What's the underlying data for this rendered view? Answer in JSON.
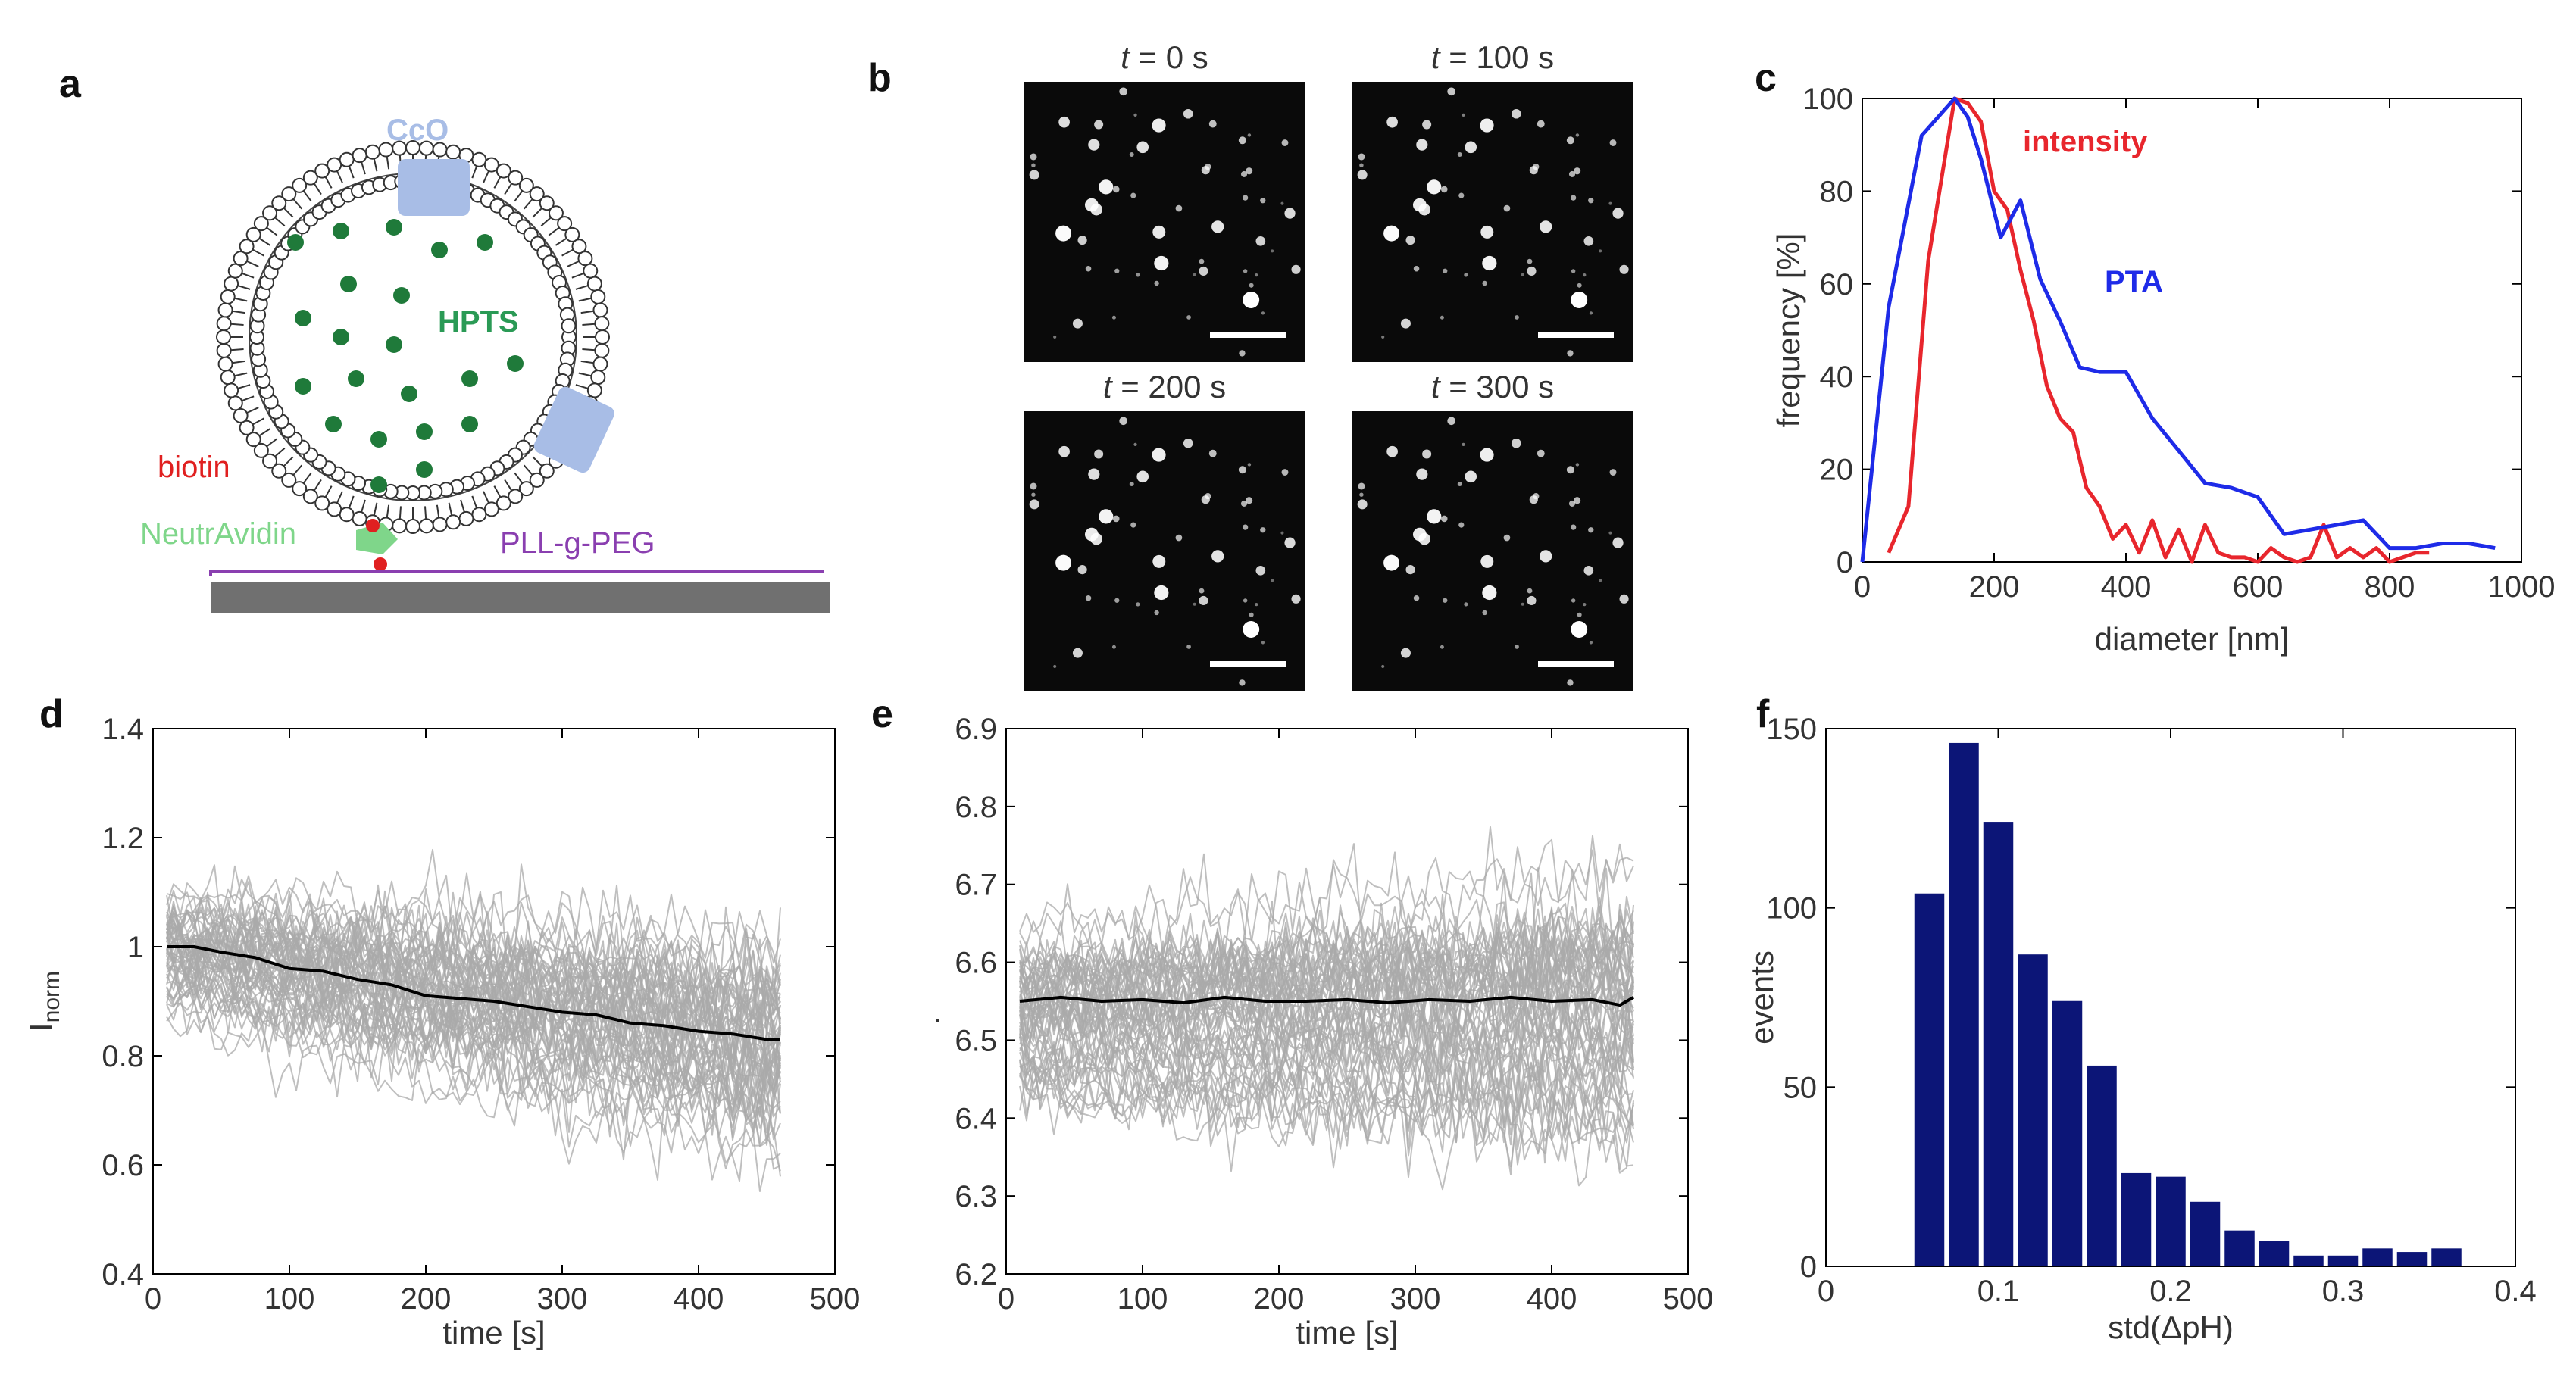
{
  "panel_labels": {
    "a": "a",
    "b": "b",
    "c": "c",
    "d": "d",
    "e": "e",
    "f": "f"
  },
  "diagram": {
    "cco_label": "CcO",
    "hpts_label": "HPTS",
    "biotin_label": "biotin",
    "neutravidin_label": "NeutrAvidin",
    "pll_label": "PLL-g-PEG",
    "colors": {
      "cco": "#a8bde6",
      "hpts": "#2a9a55",
      "hpts_dot": "#1f7a3a",
      "biotin": "#e02020",
      "neutravidin": "#7fd68a",
      "pll": "#8a3fb0",
      "substrate": "#707070"
    }
  },
  "micrographs": {
    "t_symbol": "t",
    "frames": [
      {
        "time": " = 0 s"
      },
      {
        "time": " = 100 s"
      },
      {
        "time": " = 200 s"
      },
      {
        "time": " = 300 s"
      }
    ]
  },
  "chart_data": [
    {
      "id": "c",
      "type": "line",
      "xlabel": "diameter [nm]",
      "ylabel": "frequency [%]",
      "xlim": [
        0,
        1000
      ],
      "ylim": [
        0,
        100
      ],
      "xticks": [
        "0",
        "200",
        "400",
        "600",
        "800",
        "1000"
      ],
      "yticks": [
        "0",
        "20",
        "40",
        "60",
        "80",
        "100"
      ],
      "series": [
        {
          "name": "intensity",
          "color": "#e8262d",
          "x": [
            40,
            70,
            100,
            140,
            160,
            180,
            200,
            220,
            240,
            260,
            280,
            300,
            320,
            340,
            360,
            380,
            400,
            420,
            440,
            460,
            480,
            500,
            520,
            540,
            560,
            580,
            600,
            620,
            640,
            660,
            680,
            700,
            720,
            740,
            760,
            780,
            800,
            820,
            840,
            860
          ],
          "y": [
            2,
            12,
            65,
            100,
            99,
            95,
            80,
            76,
            63,
            52,
            38,
            31,
            28,
            16,
            12,
            5,
            8,
            2,
            9,
            1,
            7,
            0,
            8,
            2,
            1,
            1,
            0,
            3,
            1,
            0,
            1,
            8,
            1,
            3,
            1,
            3,
            0,
            1,
            2,
            2
          ]
        },
        {
          "name": "PTA",
          "color": "#1e2be8",
          "x": [
            0,
            40,
            90,
            140,
            160,
            180,
            210,
            240,
            270,
            300,
            330,
            360,
            400,
            440,
            480,
            520,
            560,
            600,
            640,
            680,
            720,
            760,
            800,
            840,
            880,
            920,
            960
          ],
          "y": [
            0,
            55,
            92,
            100,
            96,
            87,
            70,
            78,
            61,
            52,
            42,
            41,
            41,
            31,
            24,
            17,
            16,
            14,
            6,
            7,
            8,
            9,
            3,
            3,
            4,
            4,
            3
          ]
        }
      ]
    },
    {
      "id": "d",
      "type": "line",
      "xlabel": "time [s]",
      "ylabel_main": "I",
      "ylabel_sub": "norm",
      "xlim": [
        0,
        500
      ],
      "ylim": [
        0.4,
        1.4
      ],
      "xticks": [
        "0",
        "100",
        "200",
        "300",
        "400",
        "500"
      ],
      "yticks": [
        "0.4",
        "0.6",
        "0.8",
        "1",
        "1.2",
        "1.4"
      ],
      "trace_band": {
        "count": 60,
        "x_start": 10,
        "x_end": 460,
        "start_mean": 1.0,
        "end_mean": 0.83,
        "start_spread": 0.07,
        "end_spread": 0.12
      },
      "mean_trace": {
        "x": [
          10,
          30,
          50,
          75,
          100,
          125,
          150,
          175,
          200,
          225,
          250,
          275,
          300,
          325,
          350,
          375,
          400,
          425,
          450,
          460
        ],
        "y": [
          1.0,
          1.0,
          0.99,
          0.98,
          0.96,
          0.955,
          0.94,
          0.93,
          0.91,
          0.905,
          0.9,
          0.89,
          0.88,
          0.875,
          0.86,
          0.855,
          0.845,
          0.84,
          0.83,
          0.83
        ]
      }
    },
    {
      "id": "e",
      "type": "line",
      "xlabel": "time [s]",
      "ylabel": ".",
      "xlim": [
        0,
        500
      ],
      "ylim": [
        6.2,
        6.9
      ],
      "xticks": [
        "0",
        "100",
        "200",
        "300",
        "400",
        "500"
      ],
      "yticks": [
        "6.2",
        "6.3",
        "6.4",
        "6.5",
        "6.6",
        "6.7",
        "6.8",
        "6.9"
      ],
      "trace_band": {
        "count": 60,
        "x_start": 10,
        "x_end": 460,
        "start_mean": 6.545,
        "end_mean": 6.56,
        "start_spread": 0.06,
        "end_spread": 0.09
      },
      "mean_trace": {
        "x": [
          10,
          40,
          70,
          100,
          130,
          160,
          190,
          220,
          250,
          280,
          310,
          340,
          370,
          400,
          430,
          450,
          460
        ],
        "y": [
          6.55,
          6.555,
          6.55,
          6.552,
          6.548,
          6.555,
          6.55,
          6.55,
          6.552,
          6.548,
          6.552,
          6.55,
          6.555,
          6.55,
          6.552,
          6.545,
          6.555
        ]
      }
    },
    {
      "id": "f",
      "type": "bar",
      "xlabel": "std(ΔpH)",
      "ylabel": "events",
      "xlim": [
        0,
        0.4
      ],
      "ylim": [
        0,
        150
      ],
      "xticks": [
        "0",
        "0.1",
        "0.2",
        "0.3",
        "0.4"
      ],
      "yticks": [
        "0",
        "50",
        "100",
        "150"
      ],
      "bin_width": 0.02,
      "bar_color": "#0c1577",
      "bin_centers": [
        0.06,
        0.08,
        0.1,
        0.12,
        0.14,
        0.16,
        0.18,
        0.2,
        0.22,
        0.24,
        0.26,
        0.28,
        0.3,
        0.32,
        0.34,
        0.36,
        0.38
      ],
      "values": [
        104,
        146,
        124,
        87,
        74,
        56,
        26,
        25,
        18,
        10,
        7,
        3,
        3,
        5,
        4,
        5,
        0
      ]
    }
  ]
}
